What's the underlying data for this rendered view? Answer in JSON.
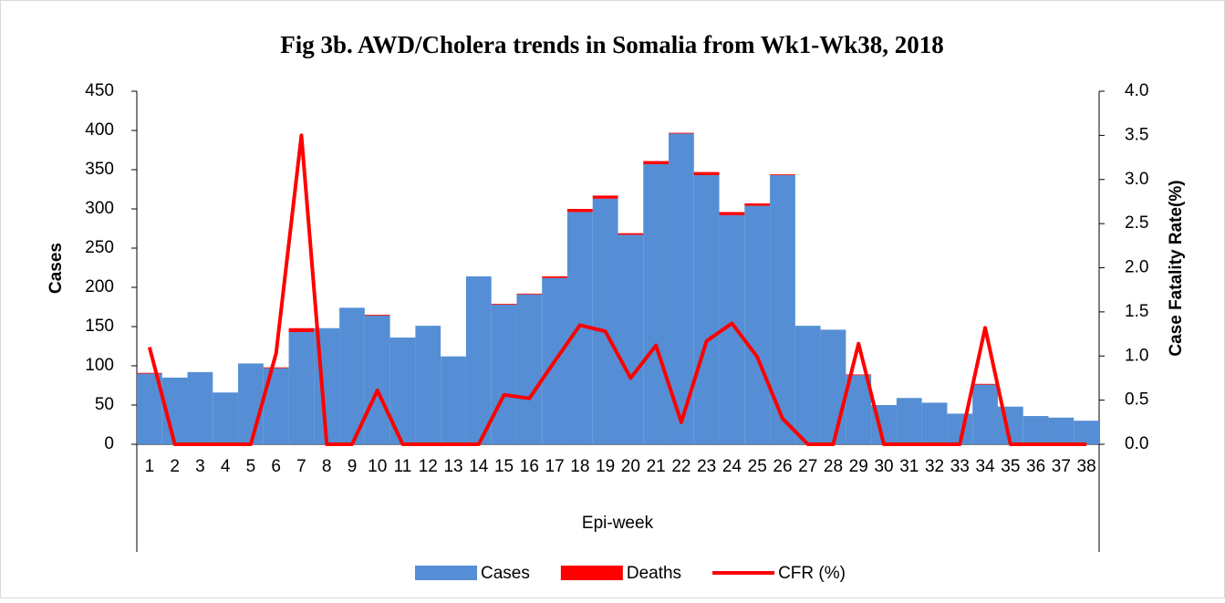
{
  "chart_data": {
    "type": "bar_line",
    "title": "Fig 3b. AWD/Cholera trends in Somalia from Wk1-Wk38, 2018",
    "x_label": "Epi-week",
    "y_label": "Cases",
    "y2_label": "Case Fatality Rate(%)",
    "categories": [
      "1",
      "2",
      "3",
      "4",
      "5",
      "6",
      "7",
      "8",
      "9",
      "10",
      "11",
      "12",
      "13",
      "14",
      "15",
      "16",
      "17",
      "18",
      "19",
      "20",
      "21",
      "22",
      "23",
      "24",
      "25",
      "26",
      "27",
      "28",
      "29",
      "30",
      "31",
      "32",
      "33",
      "34",
      "35",
      "36",
      "37",
      "38"
    ],
    "series": [
      {
        "name": "Cases",
        "type": "bar",
        "color": "#558ed5",
        "values": [
          90,
          85,
          92,
          66,
          103,
          97,
          143,
          148,
          174,
          164,
          136,
          151,
          112,
          214,
          178,
          191,
          212,
          296,
          313,
          267,
          357,
          396,
          343,
          292,
          304,
          343,
          151,
          146,
          88,
          50,
          59,
          53,
          39,
          76,
          48,
          36,
          34,
          30
        ]
      },
      {
        "name": "Deaths",
        "type": "bar",
        "color": "#ff0000",
        "values": [
          1,
          0,
          0,
          0,
          0,
          1,
          5,
          0,
          0,
          1,
          0,
          0,
          0,
          0,
          1,
          1,
          2,
          4,
          4,
          2,
          4,
          1,
          4,
          4,
          3,
          1,
          0,
          0,
          1,
          0,
          0,
          0,
          0,
          1,
          0,
          0,
          0,
          0
        ]
      },
      {
        "name": "CFR (%)",
        "type": "line",
        "axis": "y2",
        "color": "#ff0000",
        "values": [
          1.1,
          0,
          0,
          0,
          0,
          1.03,
          3.5,
          0,
          0,
          0.61,
          0,
          0,
          0,
          0,
          0.56,
          0.52,
          0.94,
          1.35,
          1.28,
          0.75,
          1.12,
          0.25,
          1.17,
          1.37,
          0.99,
          0.29,
          0,
          0,
          1.14,
          0,
          0,
          0,
          0,
          1.32,
          0,
          0,
          0,
          0
        ]
      }
    ],
    "ylim": [
      0,
      450
    ],
    "yticks": [
      0,
      50,
      100,
      150,
      200,
      250,
      300,
      350,
      400,
      450
    ],
    "y2lim": [
      0,
      4
    ],
    "y2ticks": [
      {
        "value": 0,
        "label": "0.0"
      },
      {
        "value": 0.5,
        "label": "0.5"
      },
      {
        "value": 1,
        "label": "1.0"
      },
      {
        "value": 1.5,
        "label": "1.5"
      },
      {
        "value": 2,
        "label": "2.0"
      },
      {
        "value": 2.5,
        "label": "2.5"
      },
      {
        "value": 3,
        "label": "3.0"
      },
      {
        "value": 3.5,
        "label": "3.5"
      },
      {
        "value": 4,
        "label": "4.0"
      }
    ],
    "legend": "bottom"
  }
}
